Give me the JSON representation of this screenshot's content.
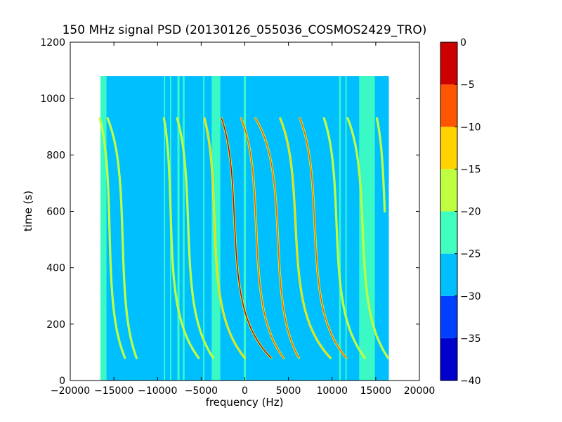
{
  "chart_data": {
    "type": "heatmap",
    "title": "150 MHz signal PSD (20130126_055036_COSMOS2429_TRO)",
    "xlabel": "frequency (Hz)",
    "ylabel": "time (s)",
    "xlim": [
      -20000,
      20000
    ],
    "ylim": [
      0,
      1200
    ],
    "xticks": [
      -20000,
      -15000,
      -10000,
      -5000,
      0,
      5000,
      10000,
      15000,
      20000
    ],
    "xtick_labels": [
      "−20000",
      "−15000",
      "−10000",
      "−5000",
      "0",
      "5000",
      "10000",
      "15000",
      "20000"
    ],
    "yticks": [
      0,
      200,
      400,
      600,
      800,
      1000,
      1200
    ],
    "ytick_labels": [
      "0",
      "200",
      "400",
      "600",
      "800",
      "1000",
      "1200"
    ],
    "data_extent": {
      "x": [
        -16500,
        16500
      ],
      "y": [
        0,
        1080
      ]
    },
    "background_level": -27.5,
    "colorbar": {
      "range": [
        -40,
        0
      ],
      "ticks": [
        0,
        -5,
        -10,
        -15,
        -20,
        -25,
        -30,
        -35,
        -40
      ],
      "tick_labels": [
        "0",
        "−5",
        "−10",
        "−15",
        "−20",
        "−25",
        "−30",
        "−35",
        "−40"
      ],
      "levels": [
        {
          "from": -40,
          "to": -35,
          "color": "#0000cd"
        },
        {
          "from": -35,
          "to": -30,
          "color": "#0040ff"
        },
        {
          "from": -30,
          "to": -25,
          "color": "#00bfff"
        },
        {
          "from": -25,
          "to": -20,
          "color": "#40ffbf"
        },
        {
          "from": -20,
          "to": -15,
          "color": "#bfff40"
        },
        {
          "from": -15,
          "to": -10,
          "color": "#ffd200"
        },
        {
          "from": -10,
          "to": -5,
          "color": "#ff5500"
        },
        {
          "from": -5,
          "to": 0,
          "color": "#cd0000"
        }
      ]
    },
    "vertical_bands": [
      {
        "x": -16200,
        "width": 700,
        "level": -22
      },
      {
        "x": -14500,
        "width": 300,
        "level": -26
      },
      {
        "x": -9200,
        "width": 150,
        "level": -22
      },
      {
        "x": -8500,
        "width": 150,
        "level": -22
      },
      {
        "x": -7600,
        "width": 250,
        "level": -22
      },
      {
        "x": -7000,
        "width": 200,
        "level": -22
      },
      {
        "x": -4700,
        "width": 150,
        "level": -22
      },
      {
        "x": -3300,
        "width": 1000,
        "level": -22
      },
      {
        "x": 0,
        "width": 250,
        "level": -22
      },
      {
        "x": 10900,
        "width": 200,
        "level": -22
      },
      {
        "x": 11600,
        "width": 150,
        "level": -22
      },
      {
        "x": 14000,
        "width": 1800,
        "level": -22
      }
    ],
    "tracks": [
      {
        "center_x": -15500,
        "center_y": 535,
        "width": 1700,
        "ymin": 80,
        "ymax": 930,
        "level": -18
      },
      {
        "center_x": -14000,
        "center_y": 500,
        "width": 2000,
        "ymin": 80,
        "ymax": 930,
        "level": -18
      },
      {
        "center_x": -8500,
        "center_y": 600,
        "width": 1900,
        "ymin": 80,
        "ymax": 930,
        "level": -18
      },
      {
        "center_x": -6500,
        "center_y": 560,
        "width": 2300,
        "ymin": 80,
        "ymax": 930,
        "level": -18
      },
      {
        "center_x": -3500,
        "center_y": 580,
        "width": 2400,
        "ymin": 80,
        "ymax": 930,
        "level": -12
      },
      {
        "center_x": -1200,
        "center_y": 575,
        "width": 3000,
        "ymin": 80,
        "ymax": 930,
        "level": -3
      },
      {
        "center_x": 1300,
        "center_y": 545,
        "width": 2800,
        "ymin": 80,
        "ymax": 930,
        "level": -8
      },
      {
        "center_x": 3800,
        "center_y": 500,
        "width": 3000,
        "ymin": 80,
        "ymax": 930,
        "level": -8
      },
      {
        "center_x": 5800,
        "center_y": 560,
        "width": 3200,
        "ymin": 80,
        "ymax": 930,
        "level": -12
      },
      {
        "center_x": 8000,
        "center_y": 555,
        "width": 3000,
        "ymin": 80,
        "ymax": 930,
        "level": -8
      },
      {
        "center_x": 10500,
        "center_y": 560,
        "width": 2600,
        "ymin": 80,
        "ymax": 930,
        "level": -18
      },
      {
        "center_x": 13500,
        "center_y": 540,
        "width": 2700,
        "ymin": 80,
        "ymax": 930,
        "level": -18
      },
      {
        "center_x": 16000,
        "center_y": 620,
        "width": 2500,
        "ymin": 600,
        "ymax": 930,
        "level": -18
      }
    ]
  }
}
